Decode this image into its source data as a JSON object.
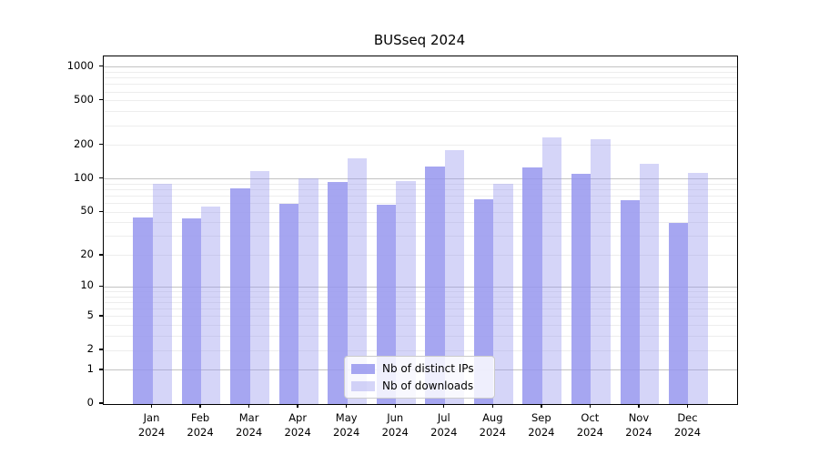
{
  "title": "BUSseq 2024",
  "chart_data": {
    "type": "bar",
    "title": "BUSseq 2024",
    "categories": [
      "Jan\n2024",
      "Feb\n2024",
      "Mar\n2024",
      "Apr\n2024",
      "May\n2024",
      "Jun\n2024",
      "Jul\n2024",
      "Aug\n2024",
      "Sep\n2024",
      "Oct\n2024",
      "Nov\n2024",
      "Dec\n2024"
    ],
    "series": [
      {
        "name": "Nb of distinct IPs",
        "color": "rgba(150,150,238,0.85)",
        "values": [
          45,
          44,
          83,
          60,
          94,
          58,
          129,
          66,
          128,
          111,
          64,
          40
        ]
      },
      {
        "name": "Nb of downloads",
        "color": "rgba(150,150,238,0.40)",
        "values": [
          90,
          56,
          118,
          102,
          154,
          95,
          180,
          90,
          235,
          228,
          137,
          113
        ]
      }
    ],
    "xlabel": "",
    "ylabel": "",
    "yscale": "log1p",
    "ylim": [
      0,
      1250
    ],
    "yticks": [
      0,
      1,
      2,
      5,
      10,
      20,
      50,
      100,
      200,
      500,
      1000
    ],
    "major_gridlines": [
      1,
      10,
      100,
      1000
    ],
    "minor_gridlines": [
      2,
      3,
      4,
      5,
      6,
      7,
      8,
      9,
      20,
      30,
      40,
      50,
      60,
      70,
      80,
      90,
      200,
      300,
      400,
      500,
      600,
      700,
      800,
      900
    ],
    "grid": true,
    "legend_position": "lower center"
  },
  "colors": {
    "bar_base": "#9696ee",
    "minor_grid": "#ededed",
    "major_grid": "#c3c3c3",
    "axis": "#000000",
    "legend_border": "#cccccc"
  }
}
